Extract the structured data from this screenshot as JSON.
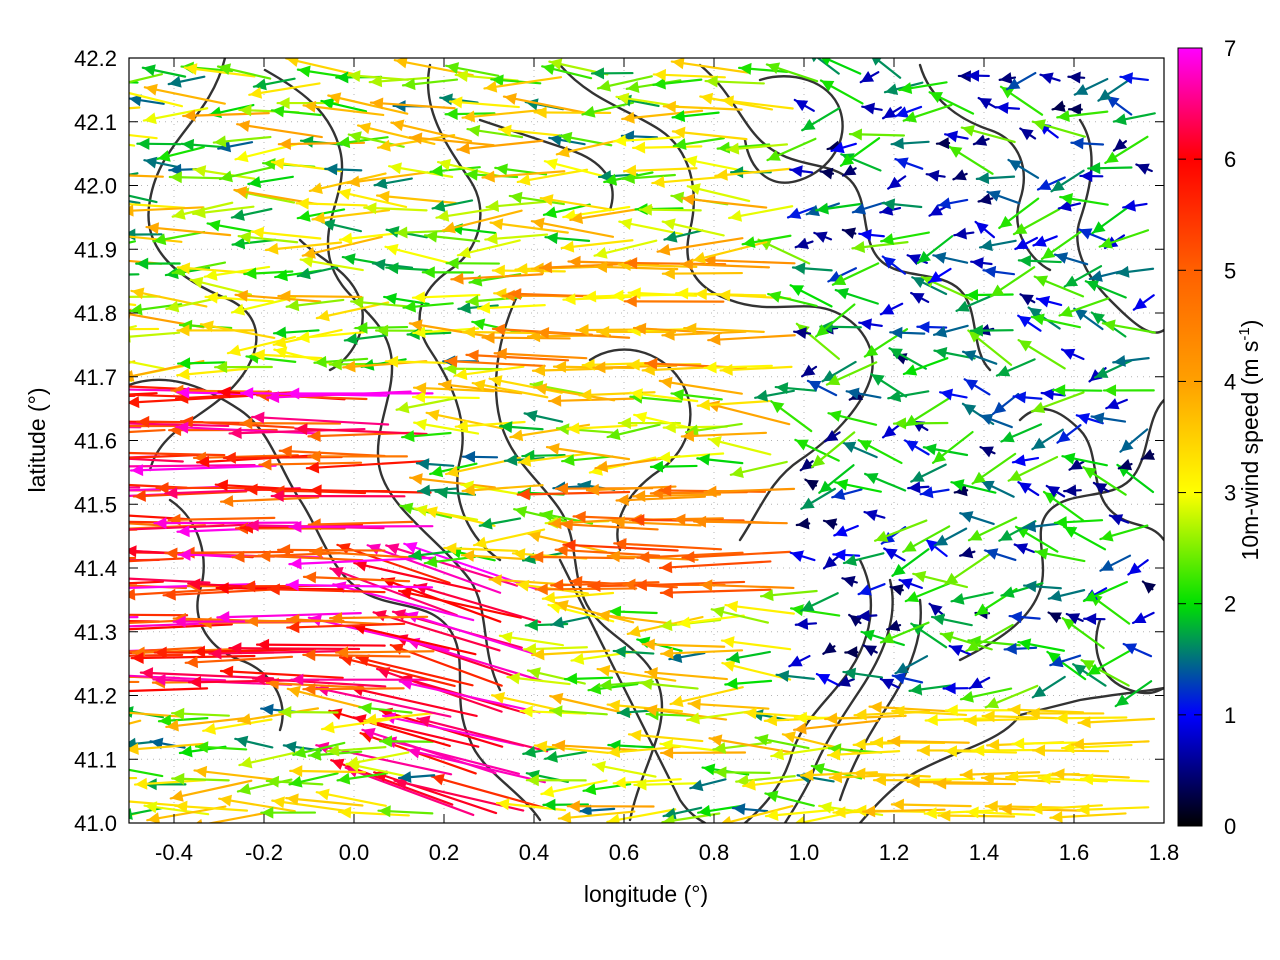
{
  "chart_data": {
    "type": "vector-field",
    "xlabel": "longitude (°)",
    "ylabel": "latitude (°)",
    "xlim": [
      -0.5,
      1.8
    ],
    "ylim": [
      41.0,
      42.2
    ],
    "x_ticks": [
      -0.4,
      -0.2,
      0.0,
      0.2,
      0.4,
      0.6,
      0.8,
      1.0,
      1.2,
      1.4,
      1.6,
      1.8
    ],
    "x_tick_labels": [
      "-0.4",
      "-0.2",
      "0.0",
      "0.2",
      "0.4",
      "0.6",
      "0.8",
      "1.0",
      "1.2",
      "1.4",
      "1.6",
      "1.8"
    ],
    "y_ticks": [
      41.0,
      41.1,
      41.2,
      41.3,
      41.4,
      41.5,
      41.6,
      41.7,
      41.8,
      41.9,
      42.0,
      42.1,
      42.2
    ],
    "y_tick_labels": [
      "41.0",
      "41.1",
      "41.2",
      "41.3",
      "41.4",
      "41.5",
      "41.6",
      "41.7",
      "41.8",
      "41.9",
      "42.0",
      "42.1",
      "42.2"
    ],
    "grid": true,
    "colorbar": {
      "label": "10m-wind speed (m s",
      "label_superscript": "-1",
      "label_suffix": ")",
      "range": [
        0,
        7
      ],
      "ticks": [
        0,
        1,
        2,
        3,
        4,
        5,
        6,
        7
      ],
      "tick_labels": [
        "0",
        "1",
        "2",
        "3",
        "4",
        "5",
        "6",
        "7"
      ],
      "colors": [
        "#000000",
        "#0000ff",
        "#00e000",
        "#ffff00",
        "#ffa000",
        "#ff6000",
        "#ff0000",
        "#ff00ff"
      ]
    },
    "wind_field_regions": [
      {
        "lon": [
          -0.5,
          0.2
        ],
        "lat": [
          41.2,
          41.7
        ],
        "direction": "westward",
        "speed": [
          4.5,
          7.0
        ]
      },
      {
        "lon": [
          0.2,
          0.45
        ],
        "lat": [
          41.0,
          41.4
        ],
        "direction": "west-northwest",
        "speed": [
          5.5,
          7.0
        ]
      },
      {
        "lon": [
          0.4,
          1.2
        ],
        "lat": [
          41.7,
          41.9
        ],
        "direction": "westward",
        "speed": [
          3.0,
          4.8
        ]
      },
      {
        "lon": [
          0.6,
          1.0
        ],
        "lat": [
          41.35,
          41.55
        ],
        "direction": "westward",
        "speed": [
          4.0,
          5.5
        ]
      },
      {
        "lon": [
          1.2,
          1.8
        ],
        "lat": [
          41.0,
          41.2
        ],
        "direction": "westward",
        "speed": [
          3.0,
          3.8
        ]
      },
      {
        "lon": [
          1.0,
          1.8
        ],
        "lat": [
          41.2,
          42.2
        ],
        "direction": "variable",
        "speed": [
          0.3,
          2.5
        ]
      }
    ],
    "terrain_contours": "orography isolines (dark grey)"
  }
}
